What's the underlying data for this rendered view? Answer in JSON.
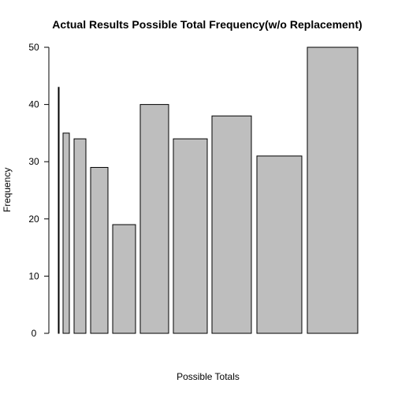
{
  "chart_data": {
    "type": "bar",
    "title": "Actual Results Possible Total Frequency(w/o Replacement)",
    "xlabel": "Possible Totals",
    "ylabel": "Frequency",
    "ylim": [
      0,
      50
    ],
    "yticks": [
      0,
      10,
      20,
      30,
      40,
      50
    ],
    "values": [
      43,
      35,
      34,
      29,
      19,
      40,
      34,
      38,
      31,
      50
    ],
    "bar_color": "#bebebe",
    "grid": false,
    "legend": "none"
  }
}
